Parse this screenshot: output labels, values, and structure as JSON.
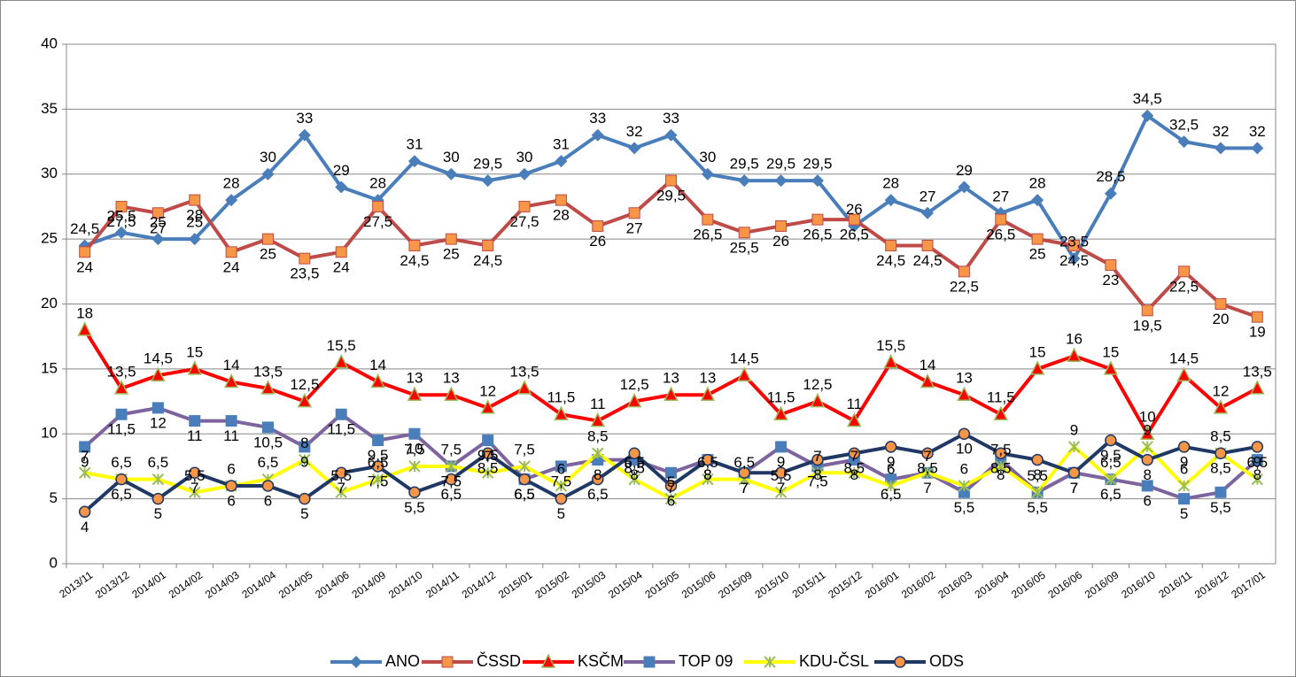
{
  "chart_data": {
    "type": "line",
    "categories": [
      "2013/11",
      "2013/12",
      "2014/01",
      "2014/02",
      "2014/03",
      "2014/04",
      "2014/05",
      "2014/06",
      "2014/09",
      "2014/10",
      "2014/11",
      "2014/12",
      "2015/01",
      "2015/02",
      "2015/03",
      "2015/04",
      "2015/05",
      "2015/06",
      "2015/09",
      "2015/10",
      "2015/11",
      "2015/12",
      "2016/01",
      "2016/02",
      "2016/03",
      "2016/04",
      "2016/05",
      "2016/06",
      "2016/09",
      "2016/10",
      "2016/11",
      "2016/12",
      "2017/01"
    ],
    "ylim": [
      0,
      40
    ],
    "yticks": [
      0,
      5,
      10,
      15,
      20,
      25,
      30,
      35,
      40
    ],
    "grid": true,
    "legend": "bottom",
    "series": [
      {
        "name": "ANO",
        "color": "#4a7ebb",
        "marker_color": "#4a7ebb",
        "marker": "diamond",
        "values": [
          24.5,
          25.5,
          25,
          25,
          28,
          30,
          33,
          29,
          28,
          31,
          30,
          29.5,
          30,
          31,
          33,
          32,
          33,
          30,
          29.5,
          29.5,
          29.5,
          26,
          28,
          27,
          29,
          27,
          28,
          23.5,
          28.5,
          34.5,
          32.5,
          32,
          32
        ],
        "value_labels": [
          "24,5",
          "25,5",
          "25",
          "25",
          "28",
          "30",
          "33",
          "29",
          "28",
          "31",
          "30",
          "29,5",
          "30",
          "31",
          "33",
          "32",
          "33",
          "30",
          "29,5",
          "29,5",
          "29,5",
          "26",
          "28",
          "27",
          "29",
          "27",
          "28",
          "23,5",
          "28,5",
          "34,5",
          "32,5",
          "32",
          "32"
        ]
      },
      {
        "name": "ČSSD",
        "color": "#be4b48",
        "marker_color": "#f79646",
        "marker": "square",
        "values": [
          24,
          27.5,
          27,
          28,
          24,
          25,
          23.5,
          24,
          27.5,
          24.5,
          25,
          24.5,
          27.5,
          28,
          26,
          27,
          29.5,
          26.5,
          25.5,
          26,
          26.5,
          26.5,
          24.5,
          24.5,
          22.5,
          26.5,
          25,
          24.5,
          23,
          19.5,
          22.5,
          20,
          19
        ],
        "value_labels": [
          "24",
          "27,5",
          "27",
          "28",
          "24",
          "25",
          "23,5",
          "24",
          "27,5",
          "24,5",
          "25",
          "24,5",
          "27,5",
          "28",
          "26",
          "27",
          "29,5",
          "26,5",
          "25,5",
          "26",
          "26,5",
          "26,5",
          "24,5",
          "24,5",
          "22,5",
          "26,5",
          "25",
          "24,5",
          "23",
          "19,5",
          "22,5",
          "20",
          "19"
        ]
      },
      {
        "name": "KSČM",
        "color": "#ff0000",
        "marker_color": "#9bbb59",
        "marker": "triangle",
        "values": [
          18,
          13.5,
          14.5,
          15,
          14,
          13.5,
          12.5,
          15.5,
          14,
          13,
          13,
          12,
          13.5,
          11.5,
          11,
          12.5,
          13,
          13,
          14.5,
          11.5,
          12.5,
          11,
          15.5,
          14,
          13,
          11.5,
          15,
          16,
          15,
          10,
          14.5,
          12,
          13.5
        ],
        "value_labels": [
          "18",
          "13,5",
          "14,5",
          "15",
          "14",
          "13,5",
          "12,5",
          "15,5",
          "14",
          "13",
          "13",
          "12",
          "13,5",
          "11,5",
          "11",
          "12,5",
          "13",
          "13",
          "14,5",
          "11,5",
          "12,5",
          "11",
          "15,5",
          "14",
          "13",
          "11,5",
          "15",
          "16",
          "15",
          "10",
          "14,5",
          "12",
          "13,5"
        ]
      },
      {
        "name": "TOP 09",
        "color": "#7e649e",
        "marker_color": "#4a7ebb",
        "marker": "square",
        "values": [
          9,
          11.5,
          12,
          11,
          11,
          10.5,
          9,
          11.5,
          9.5,
          10,
          7.5,
          9.5,
          6.5,
          7.5,
          8,
          8,
          7,
          8,
          7,
          9,
          7.5,
          8,
          6.5,
          7,
          5.5,
          8,
          5.5,
          7,
          6.5,
          6,
          5,
          5.5,
          8
        ],
        "value_labels": [
          "9",
          "11,5",
          "12",
          "11",
          "11",
          "10,5",
          "9",
          "11,5",
          "9,5",
          "10",
          "7,5",
          "9,5",
          "6,5",
          "7,5",
          "8",
          "8",
          "7",
          "8",
          "7",
          "9",
          "7,5",
          "8",
          "6,5",
          "7",
          "5,5",
          "8",
          "5,5",
          "7",
          "6,5",
          "6",
          "5",
          "5,5",
          "8"
        ]
      },
      {
        "name": "KDU-ČSL",
        "color": "#ffff00",
        "marker_color": "#9bbb59",
        "marker": "star",
        "values": [
          7,
          6.5,
          6.5,
          5.5,
          6,
          6.5,
          8,
          5.5,
          6.5,
          7.5,
          7.5,
          7,
          7.5,
          6,
          8.5,
          6.5,
          5,
          6.5,
          6.5,
          5.5,
          7,
          7,
          6,
          7,
          6,
          7.5,
          5.5,
          9,
          6.5,
          9,
          6,
          8.5,
          6.5
        ],
        "value_labels": [
          "7",
          "6,5",
          "6,5",
          "5,5",
          "6",
          "6,5",
          "8",
          "5,5",
          "6,5",
          "7,5",
          "7,5",
          "7",
          "7,5",
          "6",
          "8,5",
          "6,5",
          "5",
          "6,5",
          "6,5",
          "5,5",
          "7",
          "7",
          "6",
          "7",
          "6",
          "7,5",
          "5,5",
          "9",
          "6,5",
          "9",
          "6",
          "8,5",
          "6,5"
        ]
      },
      {
        "name": "ODS",
        "color": "#1f3864",
        "marker_color": "#f79646",
        "marker": "circle",
        "values": [
          4,
          6.5,
          5,
          7,
          6,
          6,
          5,
          7,
          7.5,
          5.5,
          6.5,
          8.5,
          6.5,
          5,
          6.5,
          8.5,
          6,
          8,
          7,
          7,
          8,
          8.5,
          9,
          8.5,
          10,
          8.5,
          8,
          7,
          9.5,
          8,
          9,
          8.5,
          9
        ],
        "value_labels": [
          "4",
          "6,5",
          "5",
          "7",
          "6",
          "6",
          "5",
          "7",
          "7,5",
          "5,5",
          "6,5",
          "8,5",
          "6,5",
          "5",
          "6,5",
          "8,5",
          "6",
          "8",
          "7",
          "7",
          "8",
          "8,5",
          "9",
          "8,5",
          "10",
          "8,5",
          "8",
          "7",
          "9,5",
          "8",
          "9",
          "8,5",
          "9"
        ]
      }
    ]
  }
}
